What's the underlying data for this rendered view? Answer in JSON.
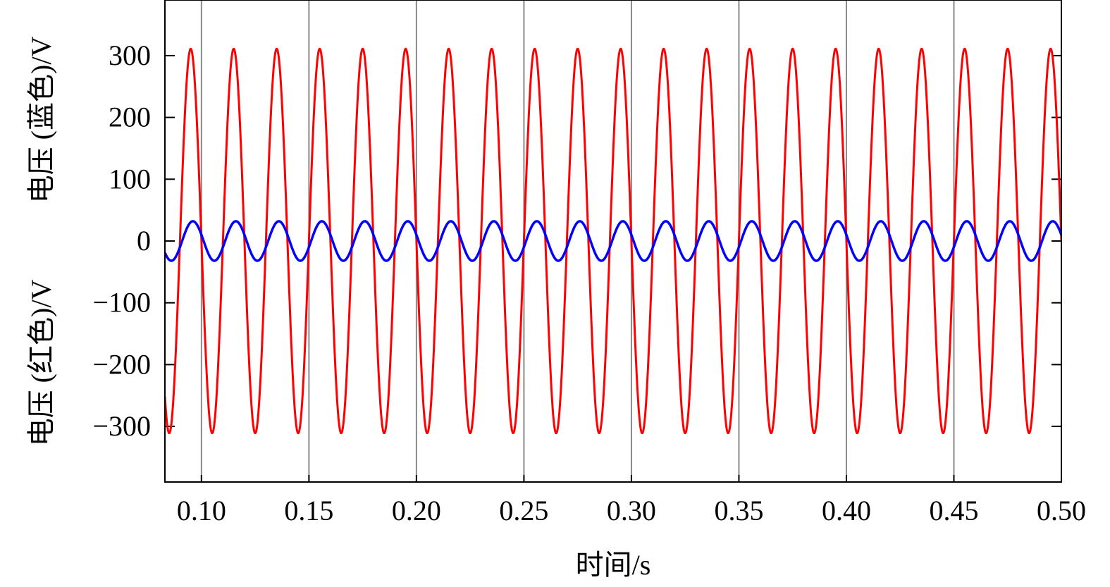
{
  "chart_data": {
    "type": "line",
    "title": "",
    "xlabel": "时间/s",
    "ylabel_upper": "电压 (蓝色)/V",
    "ylabel_lower": "电压 (红色)/V",
    "xlim": [
      0.083,
      0.5
    ],
    "ylim": [
      -390,
      390
    ],
    "x_ticks": [
      0.1,
      0.15,
      0.2,
      0.25,
      0.3,
      0.35,
      0.4,
      0.45,
      0.5
    ],
    "x_tick_labels": [
      "0.10",
      "0.15",
      "0.20",
      "0.25",
      "0.30",
      "0.35",
      "0.40",
      "0.45",
      "0.50"
    ],
    "y_ticks": [
      300,
      200,
      100,
      0,
      -100,
      -200,
      -300
    ],
    "y_tick_labels": [
      "300",
      "200",
      "100",
      "0",
      "−100",
      "−200",
      "−300"
    ],
    "grid": true,
    "series": [
      {
        "color": "#ff0000",
        "frequency_hz": 50,
        "amplitude": 311,
        "phase_ref_peak_t": 0.095,
        "x_range": [
          0.083,
          0.5
        ]
      },
      {
        "color": "#0000ff",
        "frequency_hz": 50,
        "amplitude": 32,
        "phase_ref_peak_t": 0.096,
        "x_range": [
          0.083,
          0.5
        ]
      }
    ]
  }
}
